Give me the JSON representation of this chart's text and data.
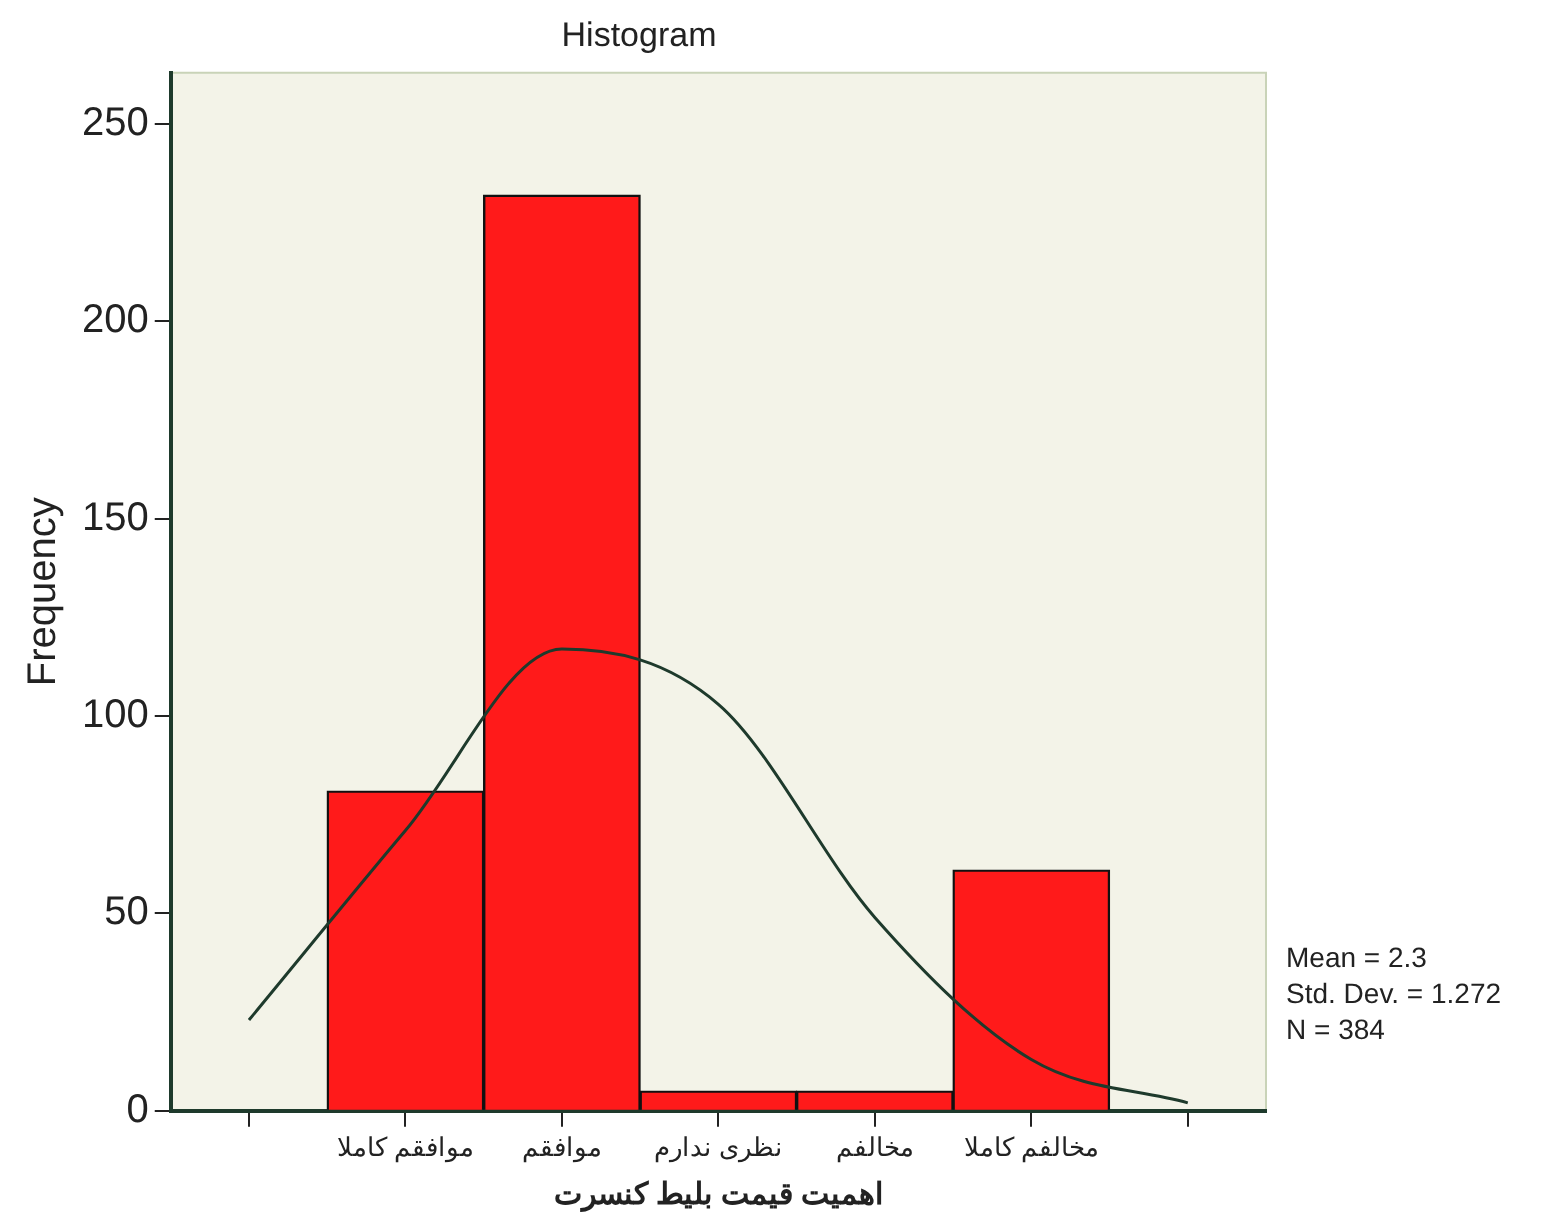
{
  "chart_data": {
    "type": "bar",
    "title": "Histogram",
    "xlabel": "اهمیت قیمت بلیط کنسرت",
    "ylabel": "Frequency",
    "categories": [
      null,
      "موافقم کاملا",
      "موافقم",
      "نظری ندارم",
      "مخالفم",
      "مخالفم کاملا",
      null
    ],
    "series": [
      {
        "color": "#ff1a1a",
        "values": [
          null,
          81,
          232,
          5,
          5,
          61,
          null
        ]
      },
      {
        "type": "line",
        "color": "#1e3a2c",
        "marker": "none",
        "values": [
          23,
          71,
          117,
          103,
          49,
          13,
          2
        ]
      }
    ],
    "ylim": [
      0,
      263
    ],
    "yticks": [
      0,
      50,
      100,
      150,
      200,
      250
    ],
    "grid": false,
    "legend": false,
    "annotations": [
      "Mean = 2.3",
      "Std. Dev. = 1.272",
      "N = 384"
    ]
  }
}
